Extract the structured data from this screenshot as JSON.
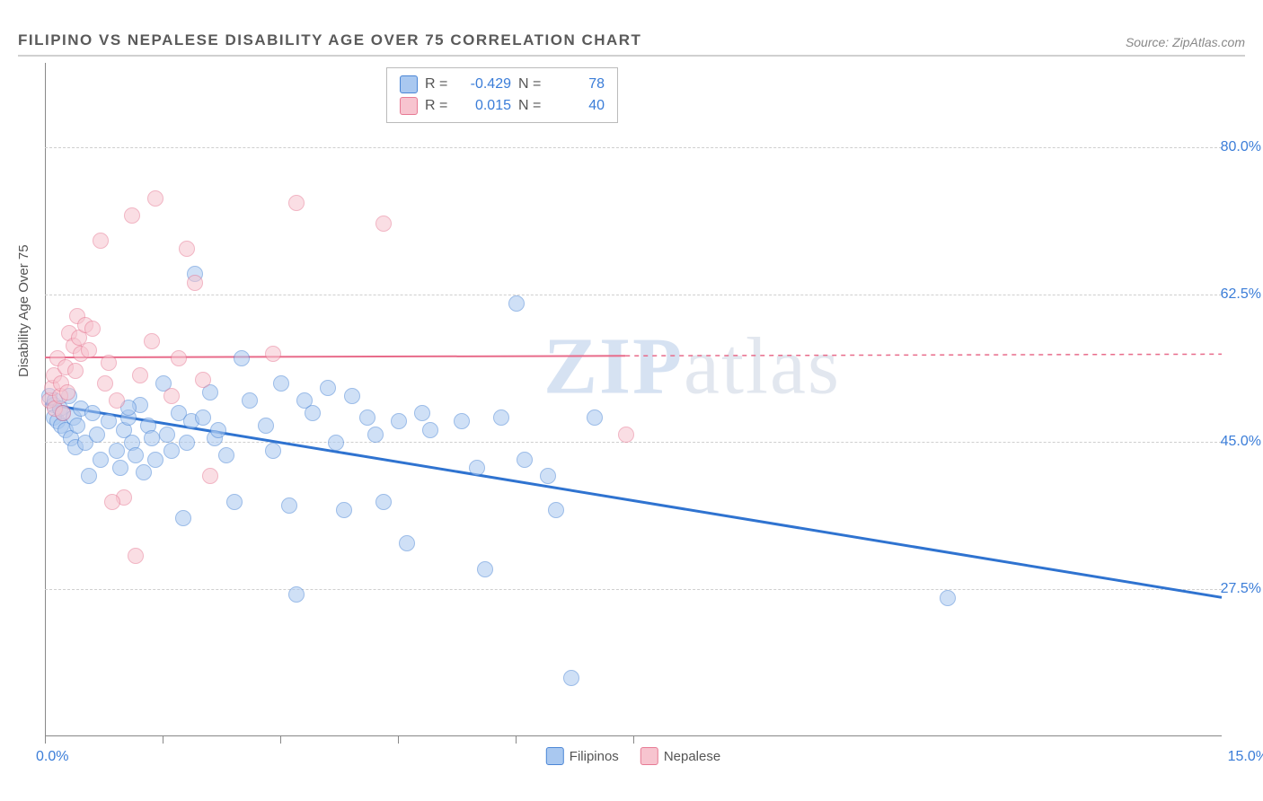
{
  "header": {
    "title": "FILIPINO VS NEPALESE DISABILITY AGE OVER 75 CORRELATION CHART",
    "source": "Source: ZipAtlas.com"
  },
  "ylabel": "Disability Age Over 75",
  "watermark": {
    "zip": "ZIP",
    "atlas": "atlas"
  },
  "chart": {
    "type": "scatter",
    "xlim": [
      0,
      15
    ],
    "ylim": [
      10,
      90
    ],
    "xtick_positions": [
      0,
      1.5,
      3.0,
      4.5,
      6.0,
      7.5
    ],
    "xlow_label": "0.0%",
    "xhigh_label": "15.0%",
    "yticks": [
      {
        "v": 80.0,
        "label": "80.0%"
      },
      {
        "v": 62.5,
        "label": "62.5%"
      },
      {
        "v": 45.0,
        "label": "45.0%"
      },
      {
        "v": 27.5,
        "label": "27.5%"
      }
    ],
    "grid_color": "#cfcfcf",
    "background_color": "#ffffff",
    "series": [
      {
        "name": "Filipinos",
        "color_fill": "#a9c8f0",
        "color_stroke": "#4b86d6",
        "R": "-0.429",
        "N": "78",
        "trend": {
          "x1": 0,
          "y1": 49.5,
          "x2": 15,
          "y2": 26.5,
          "stroke": "#2f73d0",
          "width": 3,
          "solid_until_x": 15
        },
        "points": [
          [
            0.05,
            50.5
          ],
          [
            0.1,
            49.5
          ],
          [
            0.1,
            48.0
          ],
          [
            0.12,
            50.0
          ],
          [
            0.15,
            47.5
          ],
          [
            0.18,
            49.0
          ],
          [
            0.2,
            47.0
          ],
          [
            0.22,
            48.5
          ],
          [
            0.25,
            46.5
          ],
          [
            0.3,
            50.5
          ],
          [
            0.32,
            45.5
          ],
          [
            0.35,
            48.0
          ],
          [
            0.38,
            44.5
          ],
          [
            0.4,
            47.0
          ],
          [
            0.45,
            49.0
          ],
          [
            0.5,
            45.0
          ],
          [
            0.55,
            41.0
          ],
          [
            0.6,
            48.5
          ],
          [
            0.65,
            46.0
          ],
          [
            0.7,
            43.0
          ],
          [
            0.8,
            47.5
          ],
          [
            0.9,
            44.0
          ],
          [
            0.95,
            42.0
          ],
          [
            1.0,
            46.5
          ],
          [
            1.05,
            48.0
          ],
          [
            1.1,
            45.0
          ],
          [
            1.15,
            43.5
          ],
          [
            1.2,
            49.5
          ],
          [
            1.25,
            41.5
          ],
          [
            1.3,
            47.0
          ],
          [
            1.35,
            45.5
          ],
          [
            1.4,
            43.0
          ],
          [
            1.5,
            52.0
          ],
          [
            1.55,
            46.0
          ],
          [
            1.6,
            44.0
          ],
          [
            1.7,
            48.5
          ],
          [
            1.75,
            36.0
          ],
          [
            1.8,
            45.0
          ],
          [
            1.85,
            47.5
          ],
          [
            1.9,
            65.0
          ],
          [
            2.0,
            48.0
          ],
          [
            2.1,
            51.0
          ],
          [
            2.15,
            45.5
          ],
          [
            2.2,
            46.5
          ],
          [
            2.3,
            43.5
          ],
          [
            2.4,
            38.0
          ],
          [
            2.5,
            55.0
          ],
          [
            2.6,
            50.0
          ],
          [
            2.8,
            47.0
          ],
          [
            2.9,
            44.0
          ],
          [
            3.0,
            52.0
          ],
          [
            3.1,
            37.5
          ],
          [
            3.2,
            27.0
          ],
          [
            3.3,
            50.0
          ],
          [
            3.4,
            48.5
          ],
          [
            3.6,
            51.5
          ],
          [
            3.7,
            45.0
          ],
          [
            3.8,
            37.0
          ],
          [
            3.9,
            50.5
          ],
          [
            4.1,
            48.0
          ],
          [
            4.2,
            46.0
          ],
          [
            4.3,
            38.0
          ],
          [
            4.5,
            47.5
          ],
          [
            4.6,
            33.0
          ],
          [
            4.8,
            48.5
          ],
          [
            4.9,
            46.5
          ],
          [
            5.3,
            47.5
          ],
          [
            5.5,
            42.0
          ],
          [
            5.6,
            30.0
          ],
          [
            5.8,
            48.0
          ],
          [
            6.0,
            61.5
          ],
          [
            6.1,
            43.0
          ],
          [
            6.4,
            41.0
          ],
          [
            6.5,
            37.0
          ],
          [
            6.7,
            17.0
          ],
          [
            7.0,
            48.0
          ],
          [
            11.5,
            26.5
          ],
          [
            1.05,
            49.2
          ]
        ]
      },
      {
        "name": "Nepalese",
        "color_fill": "#f7c4cf",
        "color_stroke": "#e77a94",
        "R": "0.015",
        "N": "40",
        "trend": {
          "x1": 0,
          "y1": 55.0,
          "x2": 15,
          "y2": 55.4,
          "stroke": "#e86b8a",
          "width": 2,
          "solid_until_x": 7.4
        },
        "points": [
          [
            0.05,
            50.0
          ],
          [
            0.08,
            51.5
          ],
          [
            0.1,
            53.0
          ],
          [
            0.12,
            49.0
          ],
          [
            0.15,
            55.0
          ],
          [
            0.18,
            50.5
          ],
          [
            0.2,
            52.0
          ],
          [
            0.22,
            48.5
          ],
          [
            0.25,
            54.0
          ],
          [
            0.28,
            51.0
          ],
          [
            0.3,
            58.0
          ],
          [
            0.35,
            56.5
          ],
          [
            0.38,
            53.5
          ],
          [
            0.4,
            60.0
          ],
          [
            0.42,
            57.5
          ],
          [
            0.45,
            55.5
          ],
          [
            0.5,
            59.0
          ],
          [
            0.55,
            56.0
          ],
          [
            0.6,
            58.5
          ],
          [
            0.7,
            69.0
          ],
          [
            0.75,
            52.0
          ],
          [
            0.8,
            54.5
          ],
          [
            0.9,
            50.0
          ],
          [
            1.0,
            38.5
          ],
          [
            1.1,
            72.0
          ],
          [
            1.2,
            53.0
          ],
          [
            1.35,
            57.0
          ],
          [
            1.4,
            74.0
          ],
          [
            1.6,
            50.5
          ],
          [
            1.7,
            55.0
          ],
          [
            1.8,
            68.0
          ],
          [
            1.9,
            64.0
          ],
          [
            2.0,
            52.5
          ],
          [
            2.1,
            41.0
          ],
          [
            2.9,
            55.5
          ],
          [
            3.2,
            73.5
          ],
          [
            1.15,
            31.5
          ],
          [
            4.3,
            71.0
          ],
          [
            7.4,
            46.0
          ],
          [
            0.85,
            38.0
          ]
        ]
      }
    ]
  },
  "bottom_legend": {
    "a": "Filipinos",
    "b": "Nepalese"
  }
}
